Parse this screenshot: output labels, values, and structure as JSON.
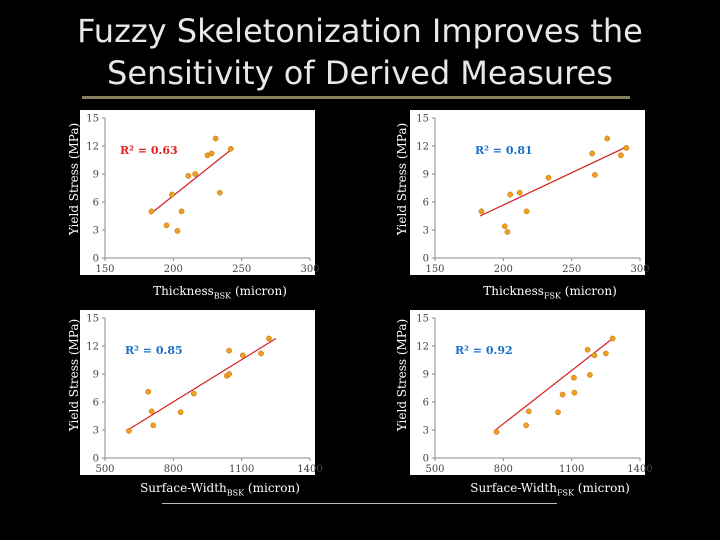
{
  "slide": {
    "title_line1": "Fuzzy Skeletonization Improves the",
    "title_line2": "Sensitivity of Derived Measures"
  },
  "chart_data": [
    {
      "type": "scatter",
      "id": "bsk-thickness",
      "xlabel_main": "Thickness",
      "xlabel_sub": "BSK",
      "xlabel_unit": " (micron)",
      "ylabel": "Yield Stress (MPa)",
      "xlim": [
        150,
        300
      ],
      "ylim": [
        0,
        15
      ],
      "xticks": [
        150,
        200,
        250,
        300
      ],
      "yticks": [
        0,
        3,
        6,
        9,
        12,
        15
      ],
      "r2": "R² = 0.63",
      "trend": [
        [
          183,
          4.7
        ],
        [
          244,
          11.8
        ]
      ],
      "points": [
        [
          184,
          5.0
        ],
        [
          195,
          3.5
        ],
        [
          199,
          6.8
        ],
        [
          203,
          2.9
        ],
        [
          206,
          5.0
        ],
        [
          211,
          8.8
        ],
        [
          216,
          9.0
        ],
        [
          225,
          11.0
        ],
        [
          228,
          11.2
        ],
        [
          231,
          12.8
        ],
        [
          234,
          7.0
        ],
        [
          242,
          11.7
        ]
      ],
      "colors": {
        "point": "#f0a020",
        "trend": "#d42020",
        "r2": "#e02020"
      }
    },
    {
      "type": "scatter",
      "id": "fsk-thickness",
      "xlabel_main": "Thickness",
      "xlabel_sub": "FSK",
      "xlabel_unit": " (micron)",
      "ylabel": "Yield Stress (MPa)",
      "xlim": [
        150,
        300
      ],
      "ylim": [
        0,
        15
      ],
      "xticks": [
        150,
        200,
        250,
        300
      ],
      "yticks": [
        0,
        3,
        6,
        9,
        12,
        15
      ],
      "r2": "R² = 0.81",
      "trend": [
        [
          183,
          4.5
        ],
        [
          290,
          11.9
        ]
      ],
      "points": [
        [
          184,
          5.0
        ],
        [
          201,
          3.4
        ],
        [
          203,
          2.8
        ],
        [
          205,
          6.8
        ],
        [
          212,
          7.0
        ],
        [
          217,
          5.0
        ],
        [
          233,
          8.6
        ],
        [
          265,
          11.2
        ],
        [
          267,
          8.9
        ],
        [
          276,
          12.8
        ],
        [
          286,
          11.0
        ],
        [
          290,
          11.8
        ]
      ],
      "colors": {
        "point": "#f0a020",
        "trend": "#d42020",
        "r2": "#1a70c8"
      }
    },
    {
      "type": "scatter",
      "id": "bsk-surface-width",
      "xlabel_main": "Surface-Width",
      "xlabel_sub": "BSK",
      "xlabel_unit": " (micron)",
      "ylabel": "Yield Stress (MPa)",
      "xlim": [
        500,
        1400
      ],
      "ylim": [
        0,
        15
      ],
      "xticks": [
        500,
        800,
        1100,
        1400
      ],
      "yticks": [
        0,
        3,
        6,
        9,
        12,
        15
      ],
      "r2": "R² = 0.85",
      "trend": [
        [
          600,
          3.0
        ],
        [
          1250,
          12.8
        ]
      ],
      "points": [
        [
          605,
          2.9
        ],
        [
          690,
          7.1
        ],
        [
          705,
          5.0
        ],
        [
          712,
          3.5
        ],
        [
          832,
          4.9
        ],
        [
          890,
          6.9
        ],
        [
          1035,
          8.8
        ],
        [
          1045,
          11.5
        ],
        [
          1045,
          9.0
        ],
        [
          1105,
          11.0
        ],
        [
          1185,
          11.2
        ],
        [
          1220,
          12.8
        ]
      ],
      "colors": {
        "point": "#f0a020",
        "trend": "#d42020",
        "r2": "#1a70c8"
      }
    },
    {
      "type": "scatter",
      "id": "fsk-surface-width",
      "xlabel_main": "Surface-Width",
      "xlabel_sub": "FSK",
      "xlabel_unit": " (micron)",
      "ylabel": "Yield Stress (MPa)",
      "xlim": [
        500,
        1400
      ],
      "ylim": [
        0,
        15
      ],
      "xticks": [
        500,
        800,
        1100,
        1400
      ],
      "yticks": [
        0,
        3,
        6,
        9,
        12,
        15
      ],
      "r2": "R² = 0.92",
      "trend": [
        [
          760,
          2.9
        ],
        [
          1280,
          12.8
        ]
      ],
      "points": [
        [
          770,
          2.8
        ],
        [
          900,
          3.5
        ],
        [
          912,
          5.0
        ],
        [
          1040,
          4.9
        ],
        [
          1060,
          6.8
        ],
        [
          1110,
          8.6
        ],
        [
          1112,
          7.0
        ],
        [
          1170,
          11.6
        ],
        [
          1180,
          8.9
        ],
        [
          1200,
          11.0
        ],
        [
          1250,
          11.2
        ],
        [
          1280,
          12.8
        ]
      ],
      "colors": {
        "point": "#f0a020",
        "trend": "#d42020",
        "r2": "#1a70c8"
      }
    }
  ]
}
